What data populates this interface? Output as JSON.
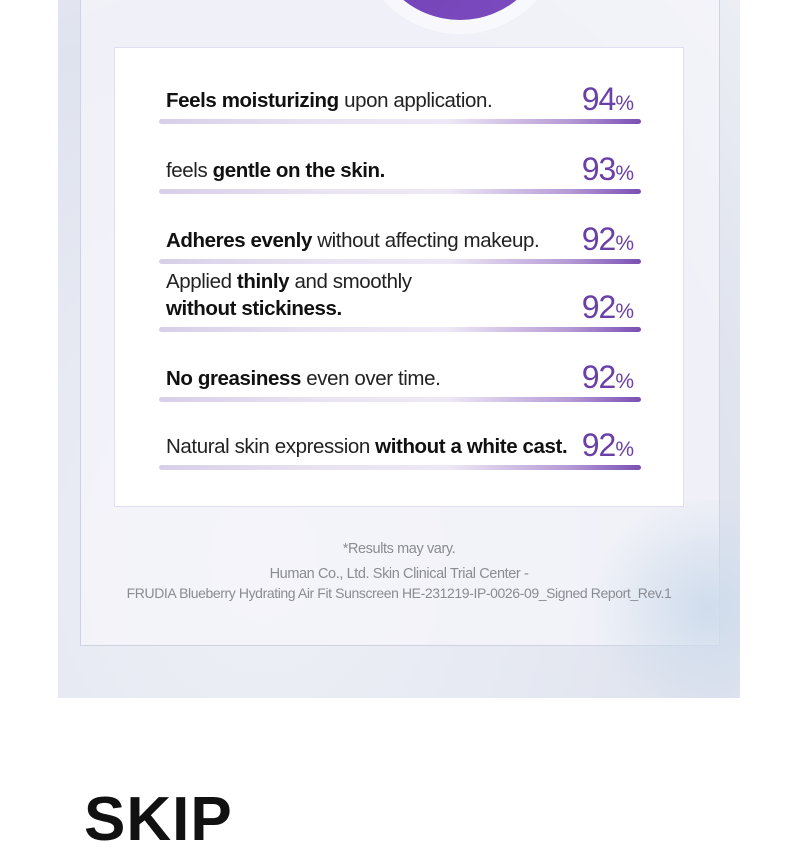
{
  "colors": {
    "accent": "#6a3fa8",
    "bar_end": "#7a4fb3"
  },
  "results": [
    {
      "line1": [
        {
          "t": "Feels moisturizing",
          "b": true
        },
        {
          "t": " upon application.",
          "b": false
        }
      ],
      "value": "94",
      "unit": "%"
    },
    {
      "line1": [
        {
          "t": "feels ",
          "b": false
        },
        {
          "t": "gentle on the skin.",
          "b": true
        }
      ],
      "value": "93",
      "unit": "%"
    },
    {
      "line1": [
        {
          "t": "Adheres evenly",
          "b": true
        },
        {
          "t": " without affecting makeup.",
          "b": false
        }
      ],
      "value": "92",
      "unit": "%"
    },
    {
      "line1": [
        {
          "t": "Applied ",
          "b": false
        },
        {
          "t": "thinly",
          "b": true
        },
        {
          "t": " and smoothly",
          "b": false
        }
      ],
      "line2": [
        {
          "t": "without stickiness.",
          "b": true
        }
      ],
      "value": "92",
      "unit": "%"
    },
    {
      "line1": [
        {
          "t": "No greasiness",
          "b": true
        },
        {
          "t": " even over time.",
          "b": false
        }
      ],
      "value": "92",
      "unit": "%"
    },
    {
      "line1": [
        {
          "t": "Natural skin expression ",
          "b": false
        },
        {
          "t": "without a white cast.",
          "b": true
        }
      ],
      "value": "92",
      "unit": "%"
    }
  ],
  "footnote": {
    "disclaimer": "*Results may vary.",
    "source_line1": "Human Co., Ltd. Skin Clinical Trial Center -",
    "source_line2": "FRUDIA Blueberry Hydrating Air Fit Sunscreen HE-231219-IP-0026-09_Signed Report_Rev.1"
  },
  "next_heading": "SKIP"
}
